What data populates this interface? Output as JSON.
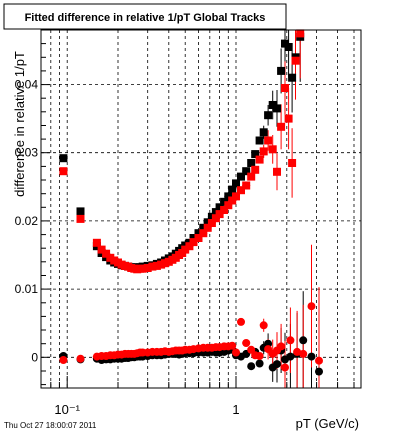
{
  "chart_data": {
    "type": "scatter",
    "title": "Fitted difference in relative 1/pT  Global Tracks",
    "xlabel": "pT (GeV/c)",
    "ylabel": "difference in relative 1/pT",
    "x_scale": "log",
    "xlim": [
      0.07,
      5.5
    ],
    "ylim": [
      -0.0045,
      0.048
    ],
    "x_ticks": [
      {
        "v": 0.1,
        "label": "10⁻¹"
      },
      {
        "v": 1,
        "label": "1"
      }
    ],
    "y_ticks": [
      {
        "v": 0,
        "label": "0"
      },
      {
        "v": 0.01,
        "label": "0.01"
      },
      {
        "v": 0.02,
        "label": "0.02"
      },
      {
        "v": 0.03,
        "label": "0.03"
      },
      {
        "v": 0.04,
        "label": "0.04"
      }
    ],
    "grid": true,
    "legend": "none",
    "footer": "Thu Oct 27 18:00:07 2011",
    "series": [
      {
        "color": "#000000",
        "marker": "square",
        "x": [
          0.095,
          0.12,
          0.15,
          0.16,
          0.17,
          0.18,
          0.19,
          0.2,
          0.21,
          0.22,
          0.23,
          0.24,
          0.25,
          0.26,
          0.27,
          0.28,
          0.3,
          0.32,
          0.34,
          0.36,
          0.38,
          0.4,
          0.42,
          0.44,
          0.46,
          0.48,
          0.5,
          0.53,
          0.56,
          0.6,
          0.64,
          0.68,
          0.72,
          0.76,
          0.8,
          0.85,
          0.9,
          0.95,
          1.0,
          1.07,
          1.15,
          1.23,
          1.3,
          1.38,
          1.46,
          1.55,
          1.65,
          1.75,
          1.85,
          1.95,
          2.05,
          2.15,
          2.25,
          2.4
        ],
        "y": [
          0.0292,
          0.0214,
          0.0163,
          0.0153,
          0.0147,
          0.0142,
          0.0139,
          0.0137,
          0.0135,
          0.0134,
          0.0133,
          0.0132,
          0.0132,
          0.0132,
          0.0132,
          0.0133,
          0.0134,
          0.0135,
          0.0137,
          0.0139,
          0.0142,
          0.0145,
          0.0148,
          0.0152,
          0.0156,
          0.016,
          0.0164,
          0.0168,
          0.0175,
          0.0182,
          0.019,
          0.0198,
          0.0206,
          0.0213,
          0.022,
          0.0228,
          0.0236,
          0.0246,
          0.0255,
          0.0265,
          0.0273,
          0.0285,
          0.0298,
          0.0318,
          0.033,
          0.0355,
          0.037,
          0.0365,
          0.042,
          0.046,
          0.0455,
          0.041,
          0.044,
          0.047
        ]
      },
      {
        "color": "#ff0000",
        "marker": "square",
        "x": [
          0.095,
          0.12,
          0.15,
          0.16,
          0.17,
          0.18,
          0.19,
          0.2,
          0.21,
          0.22,
          0.23,
          0.24,
          0.25,
          0.26,
          0.27,
          0.28,
          0.3,
          0.32,
          0.34,
          0.36,
          0.38,
          0.4,
          0.42,
          0.44,
          0.46,
          0.48,
          0.5,
          0.53,
          0.56,
          0.6,
          0.64,
          0.68,
          0.72,
          0.76,
          0.8,
          0.85,
          0.9,
          0.95,
          1.0,
          1.07,
          1.15,
          1.23,
          1.3,
          1.38,
          1.46,
          1.55,
          1.65,
          1.75,
          1.85,
          1.95,
          2.05,
          2.15,
          2.25,
          2.4
        ],
        "y": [
          0.0273,
          0.0203,
          0.0168,
          0.0158,
          0.0152,
          0.0146,
          0.0142,
          0.0139,
          0.0136,
          0.0134,
          0.0133,
          0.0131,
          0.013,
          0.0129,
          0.013,
          0.013,
          0.0131,
          0.0133,
          0.0134,
          0.0136,
          0.0138,
          0.014,
          0.0143,
          0.0146,
          0.015,
          0.0153,
          0.0158,
          0.0163,
          0.0169,
          0.0175,
          0.0182,
          0.019,
          0.0197,
          0.0204,
          0.021,
          0.0216,
          0.0223,
          0.023,
          0.0236,
          0.0245,
          0.0252,
          0.0265,
          0.0275,
          0.029,
          0.0302,
          0.0318,
          0.0305,
          0.0272,
          0.0338,
          0.0395,
          0.035,
          0.0285,
          0.0435,
          0.0475
        ]
      },
      {
        "color": "#000000",
        "marker": "circle",
        "x": [
          0.095,
          0.12,
          0.15,
          0.16,
          0.17,
          0.18,
          0.19,
          0.2,
          0.21,
          0.22,
          0.23,
          0.24,
          0.25,
          0.26,
          0.27,
          0.28,
          0.3,
          0.32,
          0.34,
          0.36,
          0.38,
          0.4,
          0.42,
          0.44,
          0.46,
          0.48,
          0.5,
          0.53,
          0.56,
          0.6,
          0.64,
          0.68,
          0.72,
          0.76,
          0.8,
          0.85,
          0.9,
          0.95,
          1.0,
          1.07,
          1.15,
          1.23,
          1.3,
          1.38,
          1.46,
          1.55,
          1.65,
          1.75,
          1.85,
          1.95,
          2.1,
          2.3,
          2.5,
          2.8,
          3.1
        ],
        "y": [
          0.0002,
          -0.0003,
          -0.0002,
          -0.0004,
          -0.0003,
          -0.0003,
          -0.0002,
          -0.0002,
          -0.0002,
          -0.0001,
          -0.0001,
          0.0,
          0.0,
          0.0001,
          0.0001,
          0.0001,
          0.0002,
          0.0003,
          0.0003,
          0.0003,
          0.0004,
          0.0005,
          0.0005,
          0.0005,
          0.0004,
          0.0005,
          0.0006,
          0.0006,
          0.0006,
          0.0007,
          0.0007,
          0.0007,
          0.0008,
          0.0007,
          0.0007,
          0.0008,
          0.001,
          0.0011,
          0.0003,
          0.0001,
          0.0005,
          -0.0013,
          0.0008,
          -0.0009,
          0.0014,
          0.002,
          -0.0015,
          -0.001,
          0.001,
          -0.0003,
          0.0001,
          0.0005,
          0.0025,
          0.0001,
          -0.0021
        ]
      },
      {
        "color": "#ff0000",
        "marker": "circle",
        "x": [
          0.095,
          0.12,
          0.15,
          0.16,
          0.17,
          0.18,
          0.19,
          0.2,
          0.21,
          0.22,
          0.23,
          0.24,
          0.25,
          0.26,
          0.27,
          0.28,
          0.3,
          0.32,
          0.34,
          0.36,
          0.38,
          0.4,
          0.42,
          0.44,
          0.46,
          0.48,
          0.5,
          0.53,
          0.56,
          0.6,
          0.64,
          0.68,
          0.72,
          0.76,
          0.8,
          0.85,
          0.9,
          0.95,
          1.0,
          1.07,
          1.15,
          1.23,
          1.3,
          1.38,
          1.46,
          1.55,
          1.65,
          1.75,
          1.85,
          1.95,
          2.1,
          2.3,
          2.5,
          2.8,
          3.1
        ],
        "y": [
          -0.0004,
          -0.0002,
          0.0001,
          0.0002,
          0.0002,
          0.0003,
          0.0003,
          0.0004,
          0.0004,
          0.0005,
          0.0005,
          0.0005,
          0.0005,
          0.0006,
          0.0007,
          0.0007,
          0.0007,
          0.0008,
          0.0008,
          0.0008,
          0.0009,
          0.0008,
          0.0009,
          0.001,
          0.001,
          0.001,
          0.0011,
          0.0011,
          0.0012,
          0.0013,
          0.0014,
          0.0014,
          0.0014,
          0.0015,
          0.0015,
          0.0016,
          0.0016,
          0.0017,
          0.0007,
          0.0052,
          0.0021,
          0.0011,
          0.0003,
          0.0002,
          0.0047,
          0.0012,
          0.0005,
          0.001,
          0.0016,
          -0.0015,
          0.0025,
          0.0008,
          0.0005,
          0.0075,
          -0.0005
        ]
      }
    ]
  }
}
